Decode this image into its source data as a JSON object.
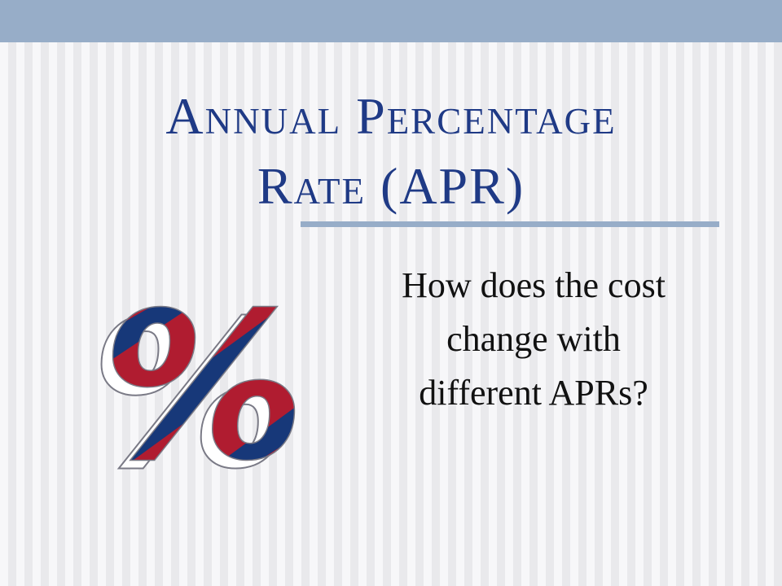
{
  "slide": {
    "title_lines": [
      "Annual Percentage",
      "Rate (APR)"
    ],
    "subtitle_lines": [
      "How does the cost",
      "change with",
      "different APRs?"
    ],
    "graphic": {
      "symbol": "%",
      "icon": "percent-icon",
      "colors": {
        "red": "#b01c30",
        "navy": "#173879",
        "shadow": "#ffffff",
        "outline": "#7a7a86"
      }
    },
    "colors": {
      "title": "#1f3a86",
      "accent_bar": "#97adc8",
      "subtitle": "#111111"
    }
  }
}
